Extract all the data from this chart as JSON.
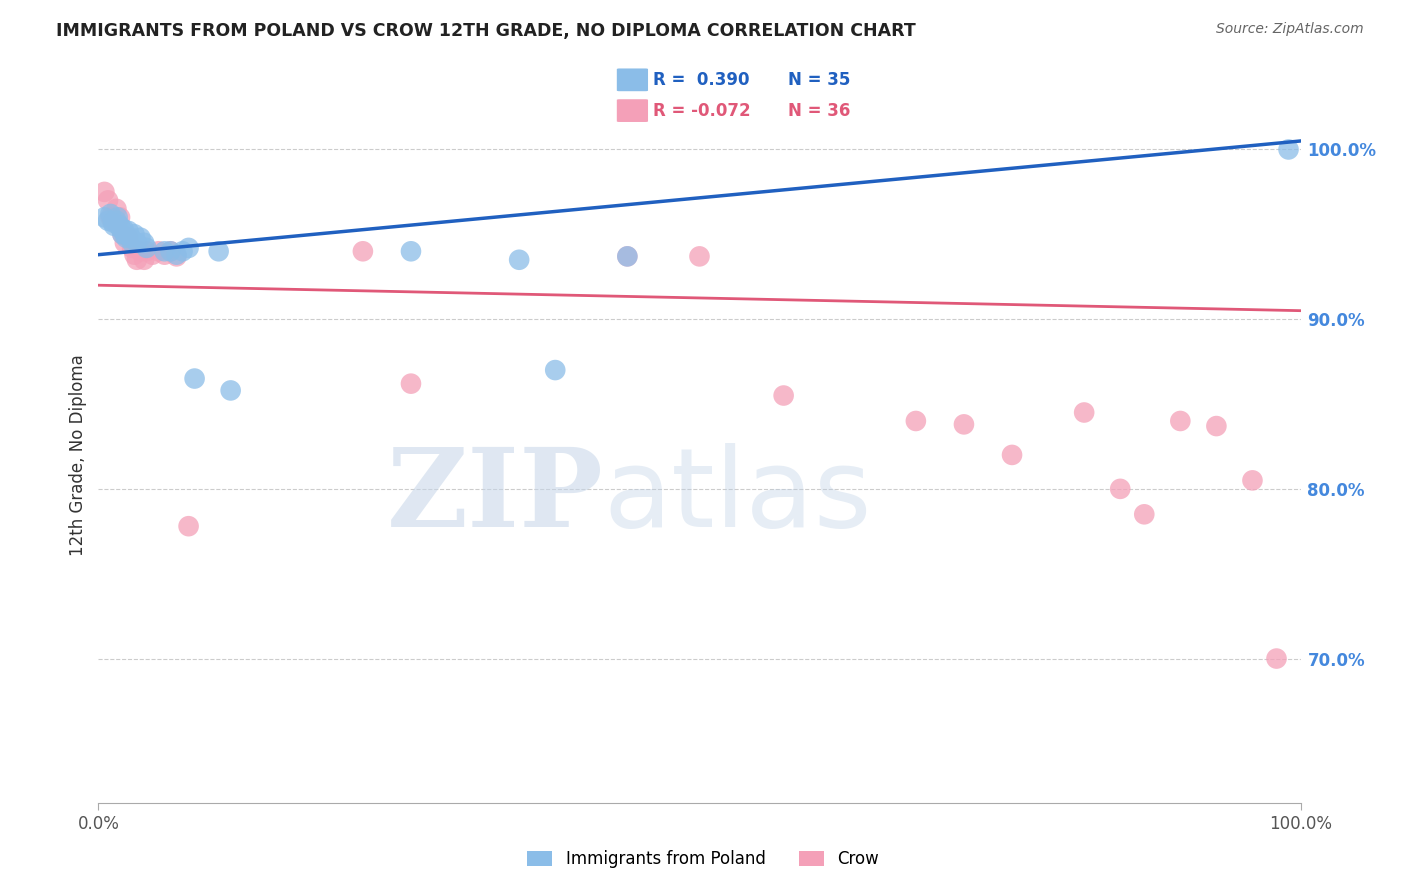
{
  "title": "IMMIGRANTS FROM POLAND VS CROW 12TH GRADE, NO DIPLOMA CORRELATION CHART",
  "source": "Source: ZipAtlas.com",
  "ylabel": "12th Grade, No Diploma",
  "xlim": [
    0.0,
    1.0
  ],
  "ylim": [
    0.615,
    1.025
  ],
  "ytick_labels": [
    "70.0%",
    "80.0%",
    "90.0%",
    "100.0%"
  ],
  "ytick_values": [
    0.7,
    0.8,
    0.9,
    1.0
  ],
  "xtick_labels": [
    "0.0%",
    "100.0%"
  ],
  "xtick_values": [
    0.0,
    1.0
  ],
  "legend_r_blue": "R =  0.390",
  "legend_n_blue": "N = 35",
  "legend_r_pink": "R = -0.072",
  "legend_n_pink": "N = 36",
  "blue_color": "#8BBDE8",
  "pink_color": "#F4A0B8",
  "blue_line_color": "#2060C0",
  "pink_line_color": "#E05878",
  "blue_scatter_x": [
    0.005,
    0.008,
    0.01,
    0.012,
    0.013,
    0.015,
    0.016,
    0.017,
    0.018,
    0.019,
    0.02,
    0.021,
    0.022,
    0.023,
    0.025,
    0.027,
    0.028,
    0.03,
    0.032,
    0.035,
    0.038,
    0.04,
    0.055,
    0.06,
    0.065,
    0.07,
    0.075,
    0.08,
    0.1,
    0.11,
    0.26,
    0.35,
    0.38,
    0.44,
    0.99
  ],
  "blue_scatter_y": [
    0.96,
    0.958,
    0.962,
    0.957,
    0.955,
    0.958,
    0.96,
    0.955,
    0.955,
    0.953,
    0.95,
    0.953,
    0.95,
    0.948,
    0.952,
    0.948,
    0.945,
    0.95,
    0.945,
    0.948,
    0.945,
    0.942,
    0.94,
    0.94,
    0.938,
    0.94,
    0.942,
    0.865,
    0.94,
    0.858,
    0.94,
    0.935,
    0.87,
    0.937,
    1.0
  ],
  "pink_scatter_x": [
    0.005,
    0.008,
    0.01,
    0.012,
    0.015,
    0.018,
    0.02,
    0.022,
    0.025,
    0.028,
    0.03,
    0.032,
    0.035,
    0.038,
    0.04,
    0.045,
    0.05,
    0.055,
    0.06,
    0.065,
    0.075,
    0.22,
    0.26,
    0.44,
    0.5,
    0.57,
    0.68,
    0.72,
    0.76,
    0.82,
    0.85,
    0.87,
    0.9,
    0.93,
    0.96,
    0.98
  ],
  "pink_scatter_y": [
    0.975,
    0.97,
    0.96,
    0.958,
    0.965,
    0.96,
    0.95,
    0.945,
    0.948,
    0.942,
    0.938,
    0.935,
    0.94,
    0.935,
    0.94,
    0.938,
    0.94,
    0.938,
    0.94,
    0.937,
    0.778,
    0.94,
    0.862,
    0.937,
    0.937,
    0.855,
    0.84,
    0.838,
    0.82,
    0.845,
    0.8,
    0.785,
    0.84,
    0.837,
    0.805,
    0.7
  ],
  "blue_line_x0": 0.0,
  "blue_line_x1": 1.0,
  "blue_line_y0": 0.938,
  "blue_line_y1": 1.005,
  "pink_line_x0": 0.0,
  "pink_line_x1": 1.0,
  "pink_line_y0": 0.92,
  "pink_line_y1": 0.905
}
